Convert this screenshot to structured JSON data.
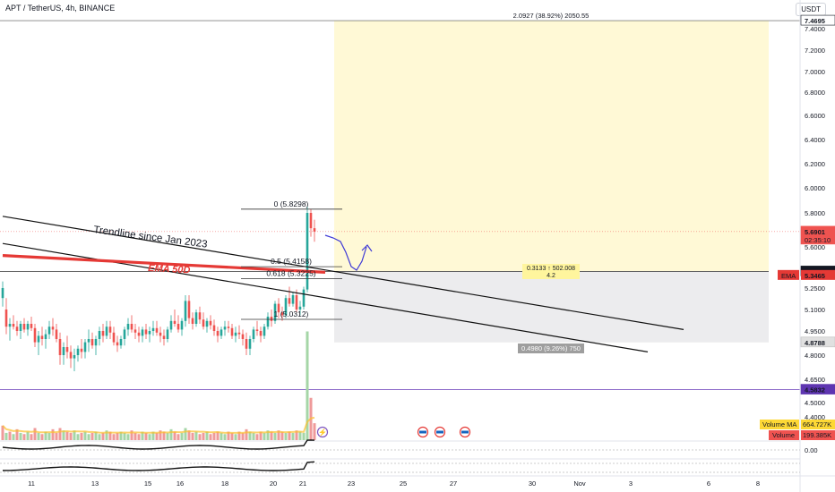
{
  "header": {
    "symbol": "APT / TetherUS, 4h, BINANCE",
    "currency": "USDT"
  },
  "colors": {
    "up": "#26a69a",
    "down": "#ef5350",
    "ema": "#e53935",
    "target_box": "#fff9d6",
    "stop_box": "#ececee",
    "path": "#3f3ad6",
    "trend": "#111111"
  },
  "chart_data": {
    "type": "candlestick",
    "ylim": [
      4.33,
      7.5
    ],
    "y_ticks": [
      "7.4000",
      "7.2000",
      "7.0000",
      "6.8000",
      "6.6000",
      "6.4000",
      "6.2000",
      "6.0000",
      "5.8000",
      "5.6000",
      "5.4000",
      "5.2500",
      "5.1000",
      "4.9500",
      "4.8000",
      "4.6500",
      "4.5000",
      "4.4000"
    ],
    "x_ticks": [
      "11",
      "13",
      "15",
      "16",
      "18",
      "20",
      "21",
      "23",
      "25",
      "27",
      "30",
      "Nov",
      "3",
      "6",
      "8"
    ],
    "candles": [
      [
        5.18,
        5.3,
        5.12,
        5.25
      ],
      [
        5.1,
        5.18,
        4.93,
        4.98
      ],
      [
        4.98,
        5.04,
        4.89,
        5.0
      ],
      [
        5.0,
        5.06,
        4.96,
        4.98
      ],
      [
        4.98,
        5.02,
        4.92,
        4.95
      ],
      [
        4.95,
        5.02,
        4.9,
        5.0
      ],
      [
        5.0,
        5.04,
        4.94,
        4.96
      ],
      [
        4.96,
        5.02,
        4.92,
        5.0
      ],
      [
        5.0,
        5.05,
        4.95,
        4.97
      ],
      [
        4.97,
        5.0,
        4.85,
        4.88
      ],
      [
        4.88,
        4.95,
        4.8,
        4.92
      ],
      [
        4.92,
        4.98,
        4.86,
        4.9
      ],
      [
        4.9,
        4.96,
        4.84,
        4.93
      ],
      [
        4.93,
        5.02,
        4.9,
        4.98
      ],
      [
        4.98,
        5.04,
        4.92,
        4.96
      ],
      [
        4.96,
        5.0,
        4.88,
        4.9
      ],
      [
        4.9,
        4.94,
        4.74,
        4.8
      ],
      [
        4.8,
        4.88,
        4.74,
        4.85
      ],
      [
        4.85,
        4.92,
        4.78,
        4.82
      ],
      [
        4.82,
        4.86,
        4.72,
        4.78
      ],
      [
        4.78,
        4.84,
        4.7,
        4.8
      ],
      [
        4.8,
        4.86,
        4.76,
        4.84
      ],
      [
        4.84,
        4.9,
        4.78,
        4.82
      ],
      [
        4.82,
        4.9,
        4.78,
        4.88
      ],
      [
        4.88,
        4.96,
        4.82,
        4.9
      ],
      [
        4.9,
        4.94,
        4.84,
        4.86
      ],
      [
        4.86,
        4.92,
        4.8,
        4.9
      ],
      [
        4.9,
        4.98,
        4.86,
        4.95
      ],
      [
        4.95,
        5.0,
        4.88,
        4.92
      ],
      [
        4.92,
        5.02,
        4.9,
        4.98
      ],
      [
        4.98,
        5.02,
        4.9,
        4.94
      ],
      [
        4.94,
        4.98,
        4.86,
        4.88
      ],
      [
        4.88,
        4.92,
        4.82,
        4.86
      ],
      [
        4.86,
        4.92,
        4.84,
        4.9
      ],
      [
        4.9,
        4.98,
        4.86,
        4.96
      ],
      [
        4.96,
        5.04,
        4.92,
        5.0
      ],
      [
        5.0,
        5.06,
        4.94,
        4.96
      ],
      [
        4.96,
        5.0,
        4.9,
        4.94
      ],
      [
        4.94,
        4.98,
        4.88,
        4.92
      ],
      [
        4.92,
        4.98,
        4.88,
        4.96
      ],
      [
        4.96,
        5.0,
        4.9,
        4.93
      ],
      [
        4.93,
        4.98,
        4.88,
        4.95
      ],
      [
        4.95,
        5.02,
        4.92,
        4.97
      ],
      [
        4.97,
        5.02,
        4.92,
        4.94
      ],
      [
        4.94,
        4.98,
        4.88,
        4.92
      ],
      [
        4.92,
        4.96,
        4.86,
        4.9
      ],
      [
        4.9,
        4.98,
        4.88,
        4.96
      ],
      [
        4.96,
        5.06,
        4.94,
        5.02
      ],
      [
        5.02,
        5.1,
        4.98,
        5.0
      ],
      [
        5.0,
        5.06,
        4.94,
        4.96
      ],
      [
        4.96,
        5.04,
        4.92,
        5.02
      ],
      [
        5.02,
        5.2,
        4.98,
        5.16
      ],
      [
        5.16,
        5.2,
        5.0,
        5.04
      ],
      [
        5.04,
        5.08,
        4.96,
        5.0
      ],
      [
        5.0,
        5.1,
        4.98,
        5.08
      ],
      [
        5.08,
        5.12,
        5.0,
        5.03
      ],
      [
        5.03,
        5.08,
        4.96,
        4.98
      ],
      [
        4.98,
        5.04,
        4.94,
        5.02
      ],
      [
        5.02,
        5.06,
        4.96,
        4.99
      ],
      [
        4.99,
        5.03,
        4.92,
        4.95
      ],
      [
        4.95,
        4.98,
        4.88,
        4.92
      ],
      [
        4.92,
        4.98,
        4.9,
        4.96
      ],
      [
        4.96,
        5.02,
        4.92,
        4.98
      ],
      [
        4.98,
        5.02,
        4.94,
        4.97
      ],
      [
        4.97,
        5.0,
        4.9,
        4.92
      ],
      [
        4.92,
        4.98,
        4.88,
        4.94
      ],
      [
        4.94,
        4.99,
        4.9,
        4.93
      ],
      [
        4.93,
        4.96,
        4.86,
        4.9
      ],
      [
        4.9,
        4.94,
        4.8,
        4.84
      ],
      [
        4.84,
        4.92,
        4.8,
        4.9
      ],
      [
        4.9,
        4.98,
        4.88,
        4.96
      ],
      [
        4.96,
        5.02,
        4.92,
        4.95
      ],
      [
        4.95,
        4.98,
        4.88,
        4.92
      ],
      [
        4.92,
        5.0,
        4.9,
        4.98
      ],
      [
        4.98,
        5.08,
        4.96,
        5.05
      ],
      [
        5.05,
        5.1,
        4.98,
        5.02
      ],
      [
        5.02,
        5.16,
        5.0,
        5.14
      ],
      [
        5.14,
        5.18,
        5.04,
        5.08
      ],
      [
        5.08,
        5.12,
        5.02,
        5.06
      ],
      [
        5.06,
        5.2,
        5.04,
        5.18
      ],
      [
        5.18,
        5.26,
        5.12,
        5.14
      ],
      [
        5.14,
        5.22,
        5.12,
        5.2
      ],
      [
        5.2,
        5.24,
        5.08,
        5.1
      ],
      [
        5.1,
        5.16,
        5.06,
        5.12
      ],
      [
        5.12,
        5.26,
        5.1,
        5.24
      ],
      [
        5.24,
        5.85,
        5.22,
        5.8
      ],
      [
        5.8,
        5.83,
        5.66,
        5.71
      ],
      [
        5.71,
        5.76,
        5.63,
        5.69
      ]
    ],
    "volume": [
      12,
      6,
      7,
      5,
      9,
      6,
      5,
      7,
      5,
      10,
      6,
      5,
      7,
      6,
      9,
      6,
      10,
      8,
      7,
      6,
      8,
      5,
      6,
      7,
      5,
      6,
      7,
      5,
      6,
      8,
      7,
      5,
      6,
      7,
      6,
      5,
      8,
      6,
      5,
      7,
      6,
      5,
      7,
      6,
      8,
      7,
      6,
      9,
      7,
      5,
      6,
      10,
      8,
      6,
      7,
      5,
      6,
      7,
      5,
      6,
      7,
      6,
      5,
      7,
      6,
      5,
      7,
      6,
      9,
      7,
      6,
      5,
      7,
      6,
      8,
      7,
      6,
      8,
      7,
      6,
      7,
      6,
      8,
      7,
      6,
      90,
      35,
      14
    ],
    "volume_up": [
      false,
      true,
      false,
      true,
      false,
      true,
      false,
      true,
      false,
      false,
      true,
      false,
      true,
      true,
      false,
      false,
      false,
      true,
      false,
      false,
      true,
      true,
      false,
      true,
      true,
      false,
      true,
      true,
      false,
      true,
      false,
      false,
      false,
      true,
      true,
      true,
      false,
      false,
      false,
      true,
      false,
      true,
      true,
      false,
      false,
      false,
      true,
      true,
      false,
      false,
      true,
      true,
      false,
      false,
      true,
      false,
      false,
      true,
      false,
      false,
      false,
      true,
      true,
      false,
      false,
      true,
      false,
      false,
      false,
      true,
      true,
      false,
      false,
      true,
      true,
      false,
      true,
      false,
      false,
      true,
      false,
      true,
      false,
      true,
      true,
      true,
      false,
      false
    ],
    "ema_50d": {
      "label": "EMA 50D",
      "from": [
        0,
        5.52
      ],
      "to": [
        90,
        5.37
      ],
      "value": "5.3465",
      "axis_label": "EMA"
    },
    "trendlines": [
      {
        "label": "Trendline since Jan 2023",
        "from": [
          0,
          5.78
        ],
        "to": [
          190,
          4.96
        ]
      },
      {
        "from": [
          0,
          5.62
        ],
        "to": [
          180,
          4.82
        ]
      }
    ],
    "fibonacci": [
      {
        "label": "0 (5.8298)",
        "value": 5.8298
      },
      {
        "label": "0.5 (5.4158)",
        "value": 5.4158
      },
      {
        "label": "0.618 (5.3225)",
        "value": 5.3225
      },
      {
        "label": "1 (5.0312)",
        "value": 5.0312
      }
    ],
    "position": {
      "entry": 5.3768,
      "target": 7.4695,
      "stop": 4.8788,
      "target_label": "2.0927 (38.92%) 2050.55",
      "risk_label": "0.4980 (9.26%) 750",
      "ratio_line1": "0.3133 ↑ 502.008",
      "ratio_line2": "4.2"
    },
    "price_labels": [
      {
        "value": "7.4695",
        "y": 7.4695,
        "style": "plain"
      },
      {
        "value": "5.6901",
        "sub": "02:35:10",
        "y": 5.6901,
        "style": "red"
      },
      {
        "value": "5.3768",
        "y": 5.3768,
        "style": "black"
      },
      {
        "value": "4.8788",
        "y": 4.8788,
        "style": "gray"
      },
      {
        "value": "4.5832",
        "y": 4.5832,
        "style": "purple"
      }
    ],
    "horizontal_line": {
      "y": 4.5832
    },
    "indicator_badges": {
      "volume_ma": "Volume MA",
      "volume_ma_value": "664.727K",
      "volume": "Volume",
      "volume_value": "199.385K"
    },
    "oscillator_tick": "0.00"
  }
}
